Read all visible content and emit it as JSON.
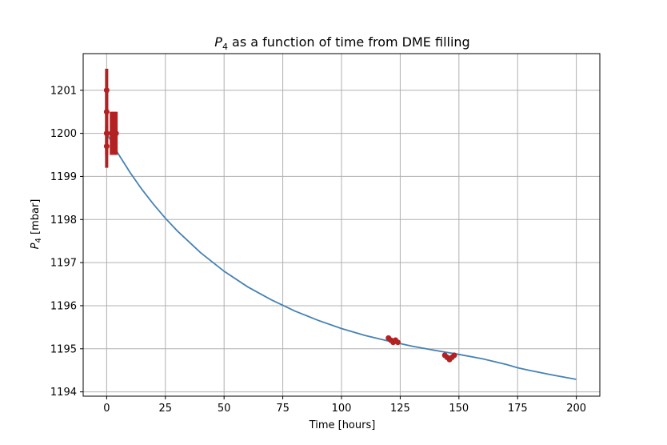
{
  "chart_data": {
    "type": "line",
    "title_main": "P",
    "title_sub": "4",
    "title_rest": " as a function of time from DME filling",
    "xlabel": "Time [hours]",
    "ylabel_main": "P",
    "ylabel_sub": "4",
    "ylabel_rest": " [mbar]",
    "xlim": [
      -10,
      210
    ],
    "ylim": [
      1193.9,
      1201.85
    ],
    "xticks": [
      0,
      25,
      50,
      75,
      100,
      125,
      150,
      175,
      200
    ],
    "yticks": [
      1194,
      1195,
      1196,
      1197,
      1198,
      1199,
      1200,
      1201
    ],
    "grid": true,
    "colors": {
      "fit": "#4682b4",
      "measurements": "#b22222"
    },
    "fit_curve": {
      "name": "",
      "x": [
        0,
        5,
        10,
        15,
        20,
        25,
        30,
        40,
        50,
        60,
        70,
        80,
        90,
        100,
        110,
        120,
        125,
        130,
        140,
        150,
        160,
        170,
        175,
        180,
        190,
        200
      ],
      "y": [
        1200.0,
        1199.52,
        1199.09,
        1198.7,
        1198.35,
        1198.03,
        1197.74,
        1197.23,
        1196.8,
        1196.44,
        1196.14,
        1195.88,
        1195.66,
        1195.47,
        1195.31,
        1195.18,
        1195.12,
        1195.06,
        1194.96,
        1194.87,
        1194.77,
        1194.64,
        1194.56,
        1194.5,
        1194.39,
        1194.29
      ]
    },
    "measurements": {
      "name": "",
      "groups": [
        {
          "x": [
            0,
            0,
            0,
            0,
            2,
            3,
            4
          ],
          "y": [
            1201.0,
            1200.0,
            1200.5,
            1199.7,
            1200.0,
            1200.0,
            1200.0
          ],
          "yerr": [
            0.5,
            0.5,
            0.5,
            0.5,
            0.5,
            0.5,
            0.5
          ]
        },
        {
          "x": [
            120,
            121,
            122,
            123,
            124
          ],
          "y": [
            1195.25,
            1195.2,
            1195.15,
            1195.2,
            1195.15
          ],
          "yerr": [
            0.05,
            0.05,
            0.05,
            0.05,
            0.05
          ]
        },
        {
          "x": [
            144,
            145,
            146,
            147,
            148
          ],
          "y": [
            1194.85,
            1194.8,
            1194.75,
            1194.8,
            1194.85
          ],
          "yerr": [
            0.05,
            0.05,
            0.05,
            0.05,
            0.05
          ]
        }
      ]
    }
  }
}
